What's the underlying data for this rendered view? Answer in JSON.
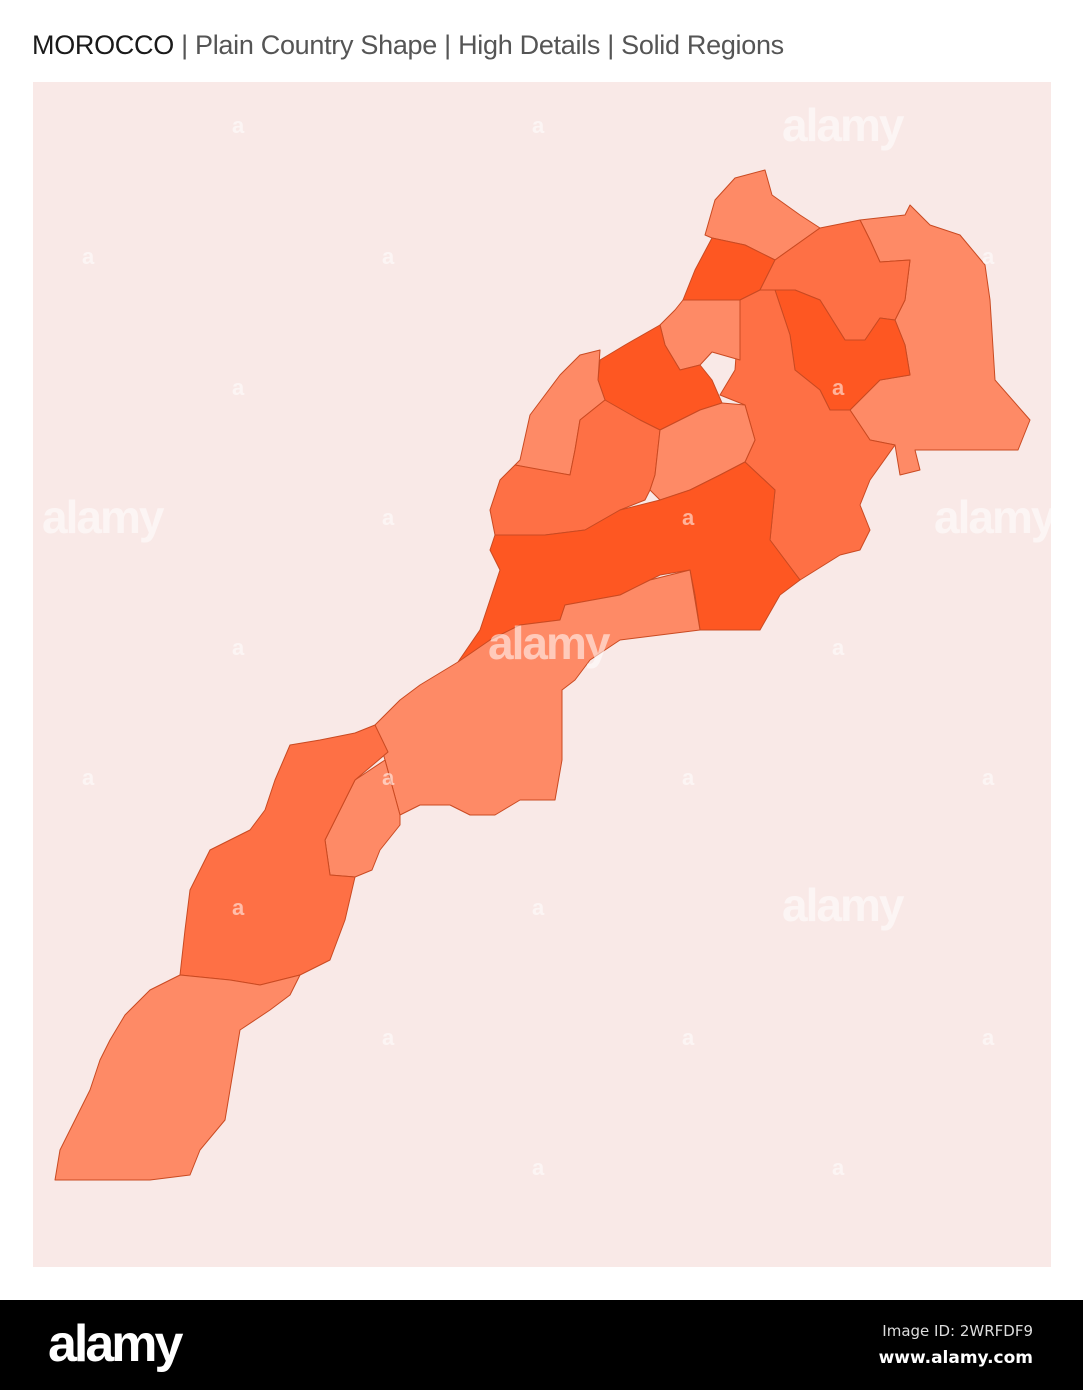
{
  "header": {
    "country": "MOROCCO",
    "subtitle": " | Plain Country Shape | High Details | Solid Regions"
  },
  "map": {
    "country": "Morocco",
    "style": "solid regions",
    "colors": {
      "background": "#f9e9e7",
      "light": "#fe8a66",
      "medium": "#fe7045",
      "dark": "#fe5722",
      "border": "#c94a22"
    },
    "region_shades": [
      "light",
      "dark",
      "light",
      "medium",
      "dark",
      "medium",
      "light",
      "dark",
      "light",
      "medium",
      "light",
      "dark",
      "light",
      "light",
      "medium",
      "light"
    ]
  },
  "watermark": {
    "text": "alamy",
    "mark": "a"
  },
  "footer": {
    "logo": "alamy",
    "image_id": "Image ID: 2WRFDF9",
    "site": "www.alamy.com"
  }
}
